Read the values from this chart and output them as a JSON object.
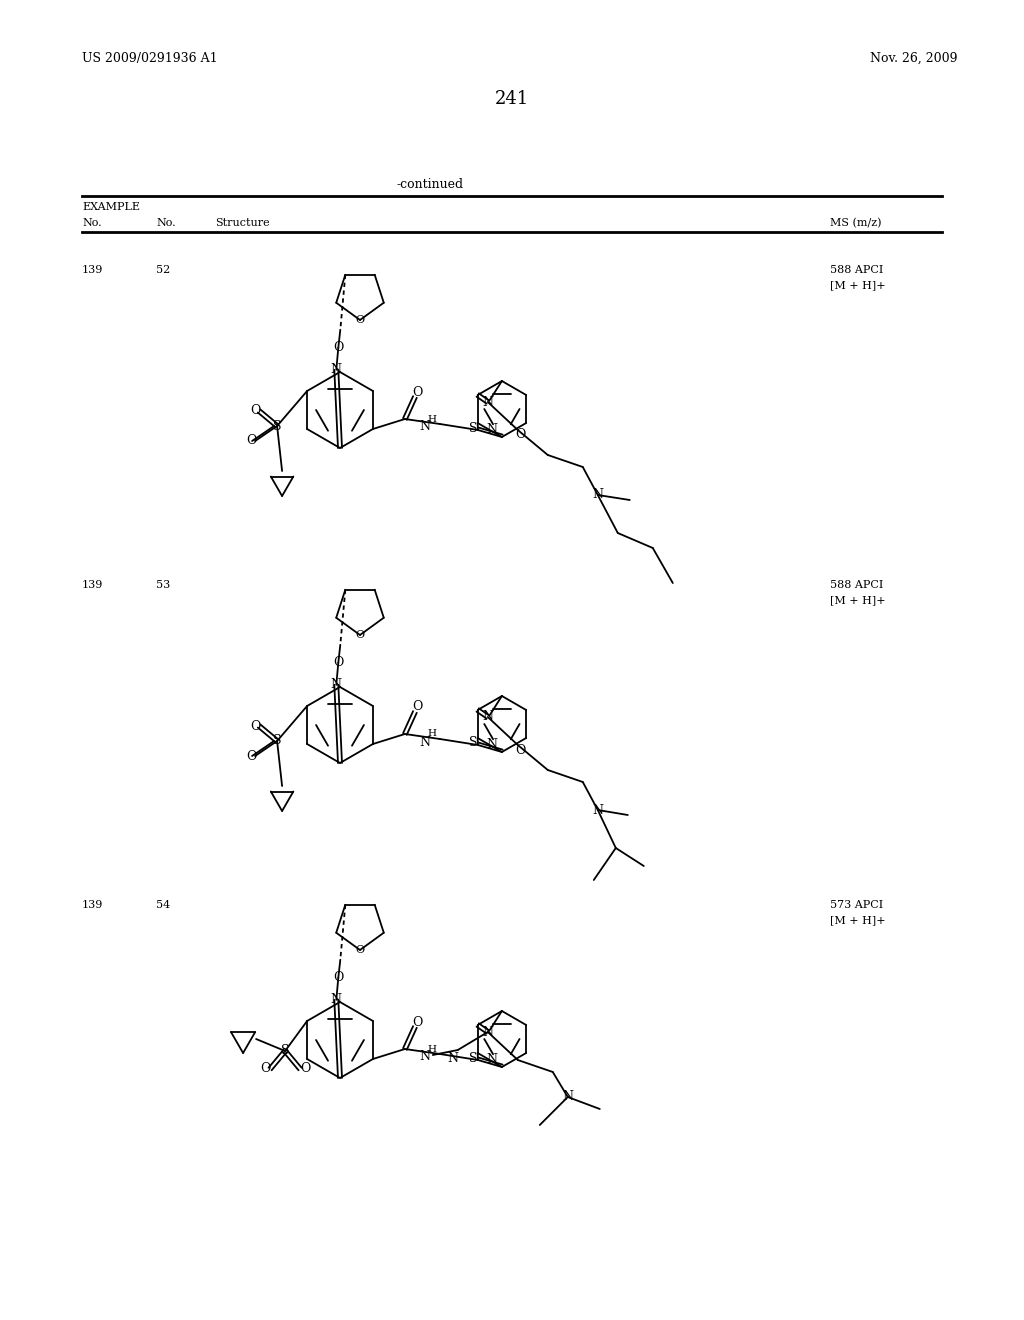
{
  "page_number": "241",
  "patent_number": "US 2009/0291936 A1",
  "patent_date": "Nov. 26, 2009",
  "continued_label": "-continued",
  "table_header_example": "EXAMPLE",
  "table_col1": "No.",
  "table_col2": "No.",
  "table_col3": "Structure",
  "table_col4": "MS (m/z)",
  "rows": [
    {
      "ex_no": "139",
      "cpd_no": "52",
      "ms1": "588 APCI",
      "ms2": "[M + H]+"
    },
    {
      "ex_no": "139",
      "cpd_no": "53",
      "ms1": "588 APCI",
      "ms2": "[M + H]+"
    },
    {
      "ex_no": "139",
      "cpd_no": "54",
      "ms1": "573 APCI",
      "ms2": "[M + H]+"
    }
  ],
  "background_color": "#ffffff",
  "text_color": "#000000",
  "line_color": "#000000"
}
